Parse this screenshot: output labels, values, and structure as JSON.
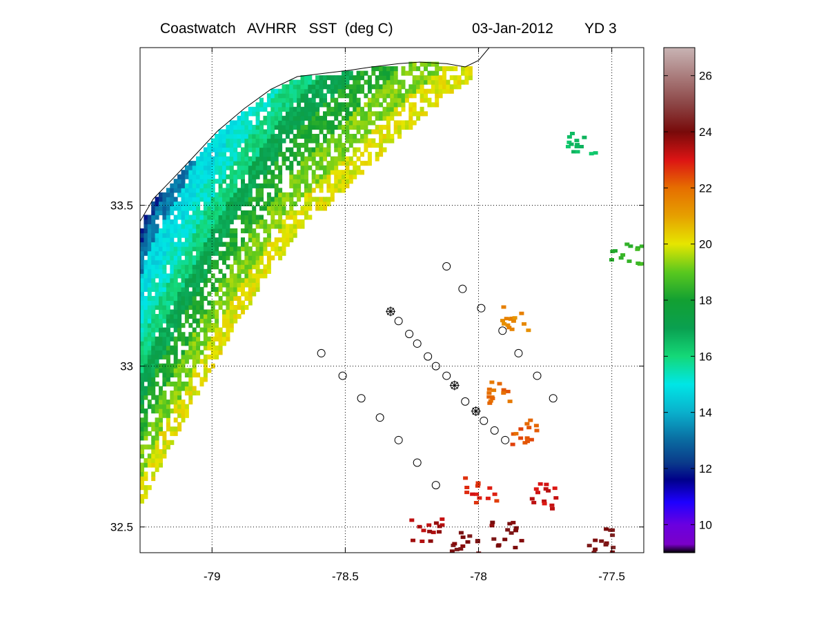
{
  "title": {
    "product": "Coastwatch   AVHRR   SST  (deg C)",
    "date": "03-Jan-2012",
    "yearday": "YD 3"
  },
  "map": {
    "lon_range": [
      -79.27,
      -77.38
    ],
    "lat_range": [
      32.42,
      33.99
    ],
    "lon_ticks": [
      -79,
      -78.5,
      -78,
      -77.5
    ],
    "lon_tick_labels": [
      "-79",
      "-78.5",
      "-78",
      "-77.5"
    ],
    "lat_ticks": [
      32.5,
      33,
      33.5
    ],
    "lat_tick_labels": [
      "32.5",
      "33",
      "33.5"
    ],
    "grid": true,
    "coastline": [
      [
        -79.27,
        33.45
      ],
      [
        -79.22,
        33.52
      ],
      [
        -79.15,
        33.58
      ],
      [
        -79.07,
        33.65
      ],
      [
        -78.98,
        33.73
      ],
      [
        -78.88,
        33.8
      ],
      [
        -78.78,
        33.86
      ],
      [
        -78.68,
        33.9
      ],
      [
        -78.58,
        33.91
      ],
      [
        -78.48,
        33.92
      ],
      [
        -78.4,
        33.93
      ],
      [
        -78.3,
        33.94
      ],
      [
        -78.22,
        33.945
      ],
      [
        -78.12,
        33.94
      ],
      [
        -78.05,
        33.93
      ],
      [
        -78.0,
        33.95
      ],
      [
        -77.96,
        33.99
      ]
    ],
    "station_circles": [
      [
        -78.12,
        33.31
      ],
      [
        -78.06,
        33.24
      ],
      [
        -77.99,
        33.18
      ],
      [
        -77.91,
        33.11
      ],
      [
        -77.85,
        33.04
      ],
      [
        -77.78,
        32.97
      ],
      [
        -77.72,
        32.9
      ],
      [
        -78.33,
        33.17
      ],
      [
        -78.3,
        33.14
      ],
      [
        -78.26,
        33.1
      ],
      [
        -78.23,
        33.07
      ],
      [
        -78.19,
        33.03
      ],
      [
        -78.16,
        33.0
      ],
      [
        -78.12,
        32.97
      ],
      [
        -78.09,
        32.94
      ],
      [
        -78.05,
        32.89
      ],
      [
        -78.01,
        32.86
      ],
      [
        -77.98,
        32.83
      ],
      [
        -77.94,
        32.8
      ],
      [
        -77.9,
        32.77
      ],
      [
        -78.59,
        33.04
      ],
      [
        -78.51,
        32.97
      ],
      [
        -78.44,
        32.9
      ],
      [
        -78.37,
        32.84
      ],
      [
        -78.3,
        32.77
      ],
      [
        -78.23,
        32.7
      ],
      [
        -78.16,
        32.63
      ]
    ],
    "station_stars": [
      [
        -78.33,
        33.17
      ],
      [
        -78.09,
        32.94
      ],
      [
        -78.01,
        32.86
      ]
    ]
  },
  "colorbar": {
    "min": 9,
    "max": 27,
    "ticks": [
      10,
      12,
      14,
      16,
      18,
      20,
      22,
      24,
      26
    ],
    "tick_labels": [
      "10",
      "12",
      "14",
      "16",
      "18",
      "20",
      "22",
      "24",
      "26"
    ],
    "stops": [
      [
        9,
        "#000000"
      ],
      [
        9.3,
        "#7a00c8"
      ],
      [
        10,
        "#6a00e0"
      ],
      [
        10.8,
        "#1e00ff"
      ],
      [
        11.6,
        "#00008a"
      ],
      [
        12.2,
        "#0a3a8a"
      ],
      [
        13,
        "#0a6aa0"
      ],
      [
        14,
        "#0ab0cc"
      ],
      [
        15,
        "#00e6e6"
      ],
      [
        16,
        "#14d878"
      ],
      [
        17,
        "#0aa050"
      ],
      [
        18,
        "#12a032"
      ],
      [
        19,
        "#5ac81e"
      ],
      [
        20,
        "#e6e600"
      ],
      [
        21,
        "#e6a000"
      ],
      [
        22,
        "#e66e00"
      ],
      [
        23,
        "#dc1414"
      ],
      [
        24,
        "#780a0a"
      ],
      [
        25,
        "#8c4646"
      ],
      [
        27,
        "#c8b4b4"
      ]
    ]
  },
  "sst_field": {
    "units": "deg C",
    "bands": [
      {
        "sst": 12.2,
        "offset_deg": 0.06
      },
      {
        "sst": 13.2,
        "offset_deg": 0.13
      },
      {
        "sst": 14.8,
        "offset_deg": 0.22
      },
      {
        "sst": 15.3,
        "offset_deg": 0.3
      },
      {
        "sst": 16.0,
        "offset_deg": 0.38
      },
      {
        "sst": 17.0,
        "offset_deg": 0.46
      },
      {
        "sst": 18.2,
        "offset_deg": 0.55
      },
      {
        "sst": 19.2,
        "offset_deg": 0.64
      },
      {
        "sst": 20.0,
        "offset_deg": 0.72
      }
    ],
    "offshore_cloud_free": [
      {
        "lon": -77.95,
        "lat": 32.92,
        "sst": 22.0
      },
      {
        "lon": -77.85,
        "lat": 32.8,
        "sst": 22.3
      },
      {
        "lon": -78.0,
        "lat": 32.62,
        "sst": 22.8
      },
      {
        "lon": -77.75,
        "lat": 32.6,
        "sst": 23.2
      },
      {
        "lon": -77.9,
        "lat": 32.48,
        "sst": 24.0
      },
      {
        "lon": -77.55,
        "lat": 32.46,
        "sst": 24.2
      },
      {
        "lon": -78.05,
        "lat": 32.45,
        "sst": 24.1
      },
      {
        "lon": -78.2,
        "lat": 32.5,
        "sst": 23.5
      },
      {
        "lon": -77.88,
        "lat": 33.15,
        "sst": 21.5
      },
      {
        "lon": -77.62,
        "lat": 33.7,
        "sst": 16.5
      },
      {
        "lon": -77.45,
        "lat": 33.35,
        "sst": 18.5
      }
    ]
  }
}
